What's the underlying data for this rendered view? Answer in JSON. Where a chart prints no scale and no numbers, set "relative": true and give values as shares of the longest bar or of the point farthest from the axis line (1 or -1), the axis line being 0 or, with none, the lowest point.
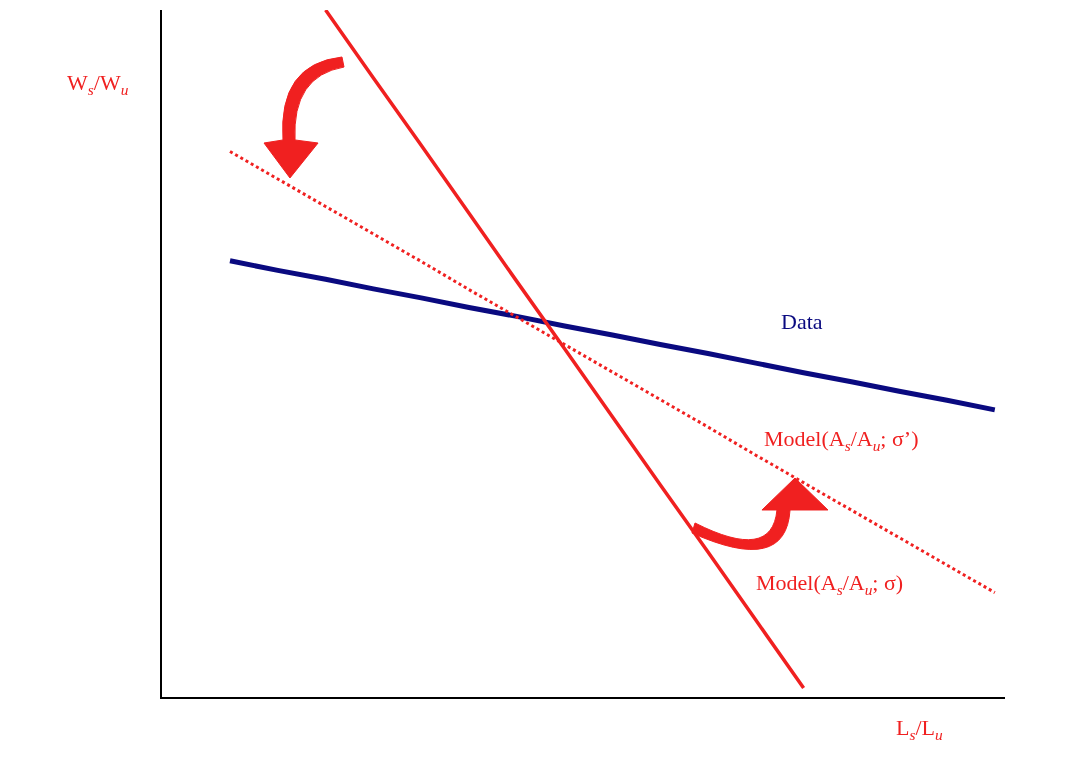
{
  "chart_data": {
    "type": "line",
    "relative": true,
    "xlabel": "L$_{s}$/L$_{u}$",
    "ylabel": "W$_{s}$/W$_{u}$",
    "marker": "none",
    "categories": [
      null,
      null,
      null,
      null,
      null,
      null,
      null,
      null,
      null,
      null,
      null,
      null,
      null,
      null,
      null,
      null,
      null
    ],
    "series": [
      {
        "name": "Data",
        "color": "#0a0a80",
        "line_style": "solid",
        "values": [
          0.635,
          0.621,
          0.608,
          0.594,
          0.581,
          0.567,
          0.554,
          0.54,
          0.527,
          0.513,
          0.5,
          0.486,
          0.472,
          0.459,
          0.445,
          0.432,
          0.418
        ]
      },
      {
        "name": "Model(A$_{s}$/A$_{u}$; σ’)",
        "color": "#f02020",
        "line_style": "dotted",
        "values": [
          0.794,
          0.754,
          0.714,
          0.674,
          0.634,
          0.593,
          0.553,
          0.513,
          0.473,
          0.433,
          0.393,
          0.352,
          0.312,
          0.272,
          0.232,
          0.192,
          0.152
        ]
      },
      {
        "name": "Model(A$_{s}$/A$_{u}$; σ)",
        "color": "#f02020",
        "line_style": "solid",
        "values": [
          null,
          null,
          1.0,
          0.901,
          0.803,
          0.704,
          0.605,
          0.507,
          0.408,
          0.309,
          0.211,
          0.112,
          0.013,
          null,
          null,
          null,
          null
        ]
      }
    ]
  }
}
